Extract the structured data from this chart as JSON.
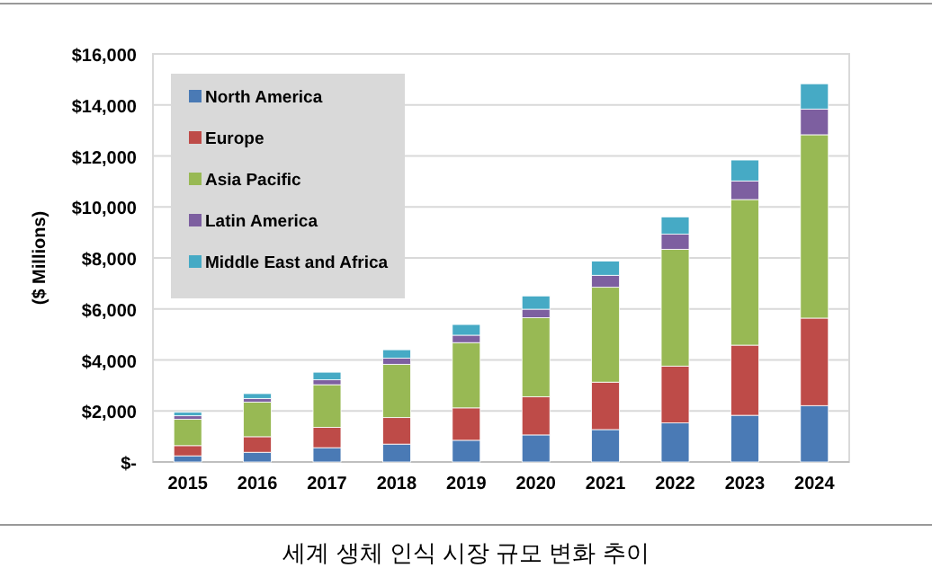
{
  "chart_data": {
    "type": "bar",
    "stacked": true,
    "title": "세계 생체 인식 시장 규모 변화 추이",
    "ylabel": "($ Millions)",
    "categories": [
      "2015",
      "2016",
      "2017",
      "2018",
      "2019",
      "2020",
      "2021",
      "2022",
      "2023",
      "2024"
    ],
    "series": [
      {
        "name": "North America",
        "color": "#4a7ab5",
        "values": [
          240,
          380,
          560,
          700,
          850,
          1060,
          1270,
          1530,
          1830,
          2210
        ]
      },
      {
        "name": "Europe",
        "color": "#be4b48",
        "values": [
          400,
          610,
          800,
          1040,
          1270,
          1500,
          1860,
          2230,
          2750,
          3430
        ]
      },
      {
        "name": "Asia Pacific",
        "color": "#98b954",
        "values": [
          1030,
          1360,
          1670,
          2090,
          2560,
          3100,
          3720,
          4580,
          5710,
          7190
        ]
      },
      {
        "name": "Latin America",
        "color": "#7d5fa0",
        "values": [
          140,
          140,
          190,
          240,
          290,
          330,
          470,
          590,
          730,
          1010
        ]
      },
      {
        "name": "Middle East and Africa",
        "color": "#46aac5",
        "values": [
          140,
          190,
          300,
          330,
          420,
          520,
          560,
          680,
          820,
          990
        ]
      }
    ],
    "ylim": [
      0,
      16000
    ],
    "yticks": [
      {
        "value": 0,
        "label": "$-"
      },
      {
        "value": 2000,
        "label": "$2,000"
      },
      {
        "value": 4000,
        "label": "$4,000"
      },
      {
        "value": 6000,
        "label": "$6,000"
      },
      {
        "value": 8000,
        "label": "$8,000"
      },
      {
        "value": 10000,
        "label": "$10,000"
      },
      {
        "value": 12000,
        "label": "$12,000"
      },
      {
        "value": 14000,
        "label": "$14,000"
      },
      {
        "value": 16000,
        "label": "$16,000"
      }
    ],
    "grid": "y",
    "legend": "top left"
  }
}
